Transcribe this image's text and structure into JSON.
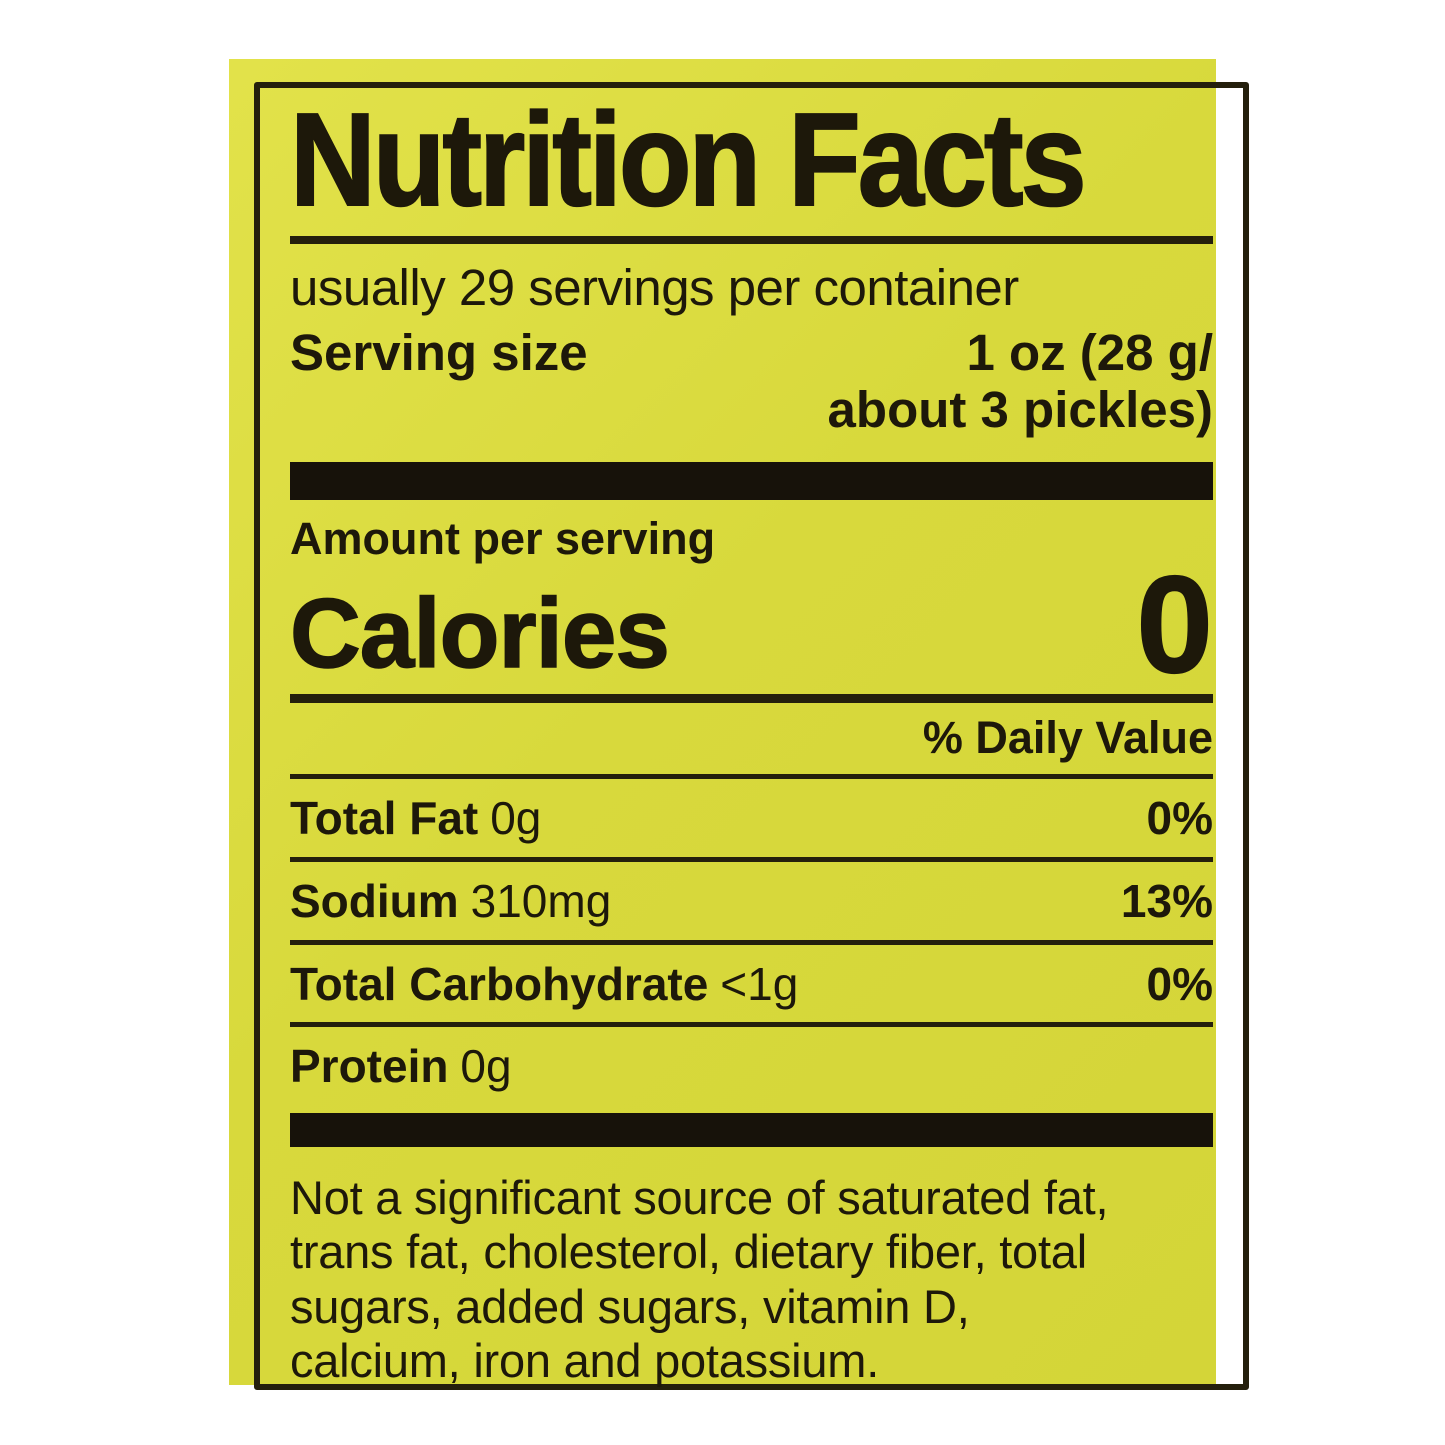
{
  "label": {
    "title": "Nutrition Facts",
    "servings_per_container": "usually 29 servings per container",
    "serving_size_label": "Serving size",
    "serving_size_value_line1": "1 oz (28 g/",
    "serving_size_value_line2": "about 3 pickles)",
    "amount_per_serving": "Amount per serving",
    "calories_label": "Calories",
    "calories_value": "0",
    "daily_value_header": "% Daily Value",
    "rows": [
      {
        "name": "Total Fat",
        "amount": "0g",
        "dv": "0%"
      },
      {
        "name": "Sodium",
        "amount": "310mg",
        "dv": "13%"
      },
      {
        "name": "Total Carbohydrate",
        "amount": "<1g",
        "dv": "0%"
      },
      {
        "name": "Protein",
        "amount": "0g",
        "dv": ""
      }
    ],
    "footnote_lines": [
      "Not a significant source of saturated fat,",
      "trans fat, cholesterol, dietary fiber, total",
      "sugars, added sugars, vitamin D,",
      "calcium, iron and potassium."
    ],
    "colors": {
      "label_bg": "#dcdc40",
      "ink": "#1d180a",
      "page_bg": "#ffffff"
    }
  }
}
